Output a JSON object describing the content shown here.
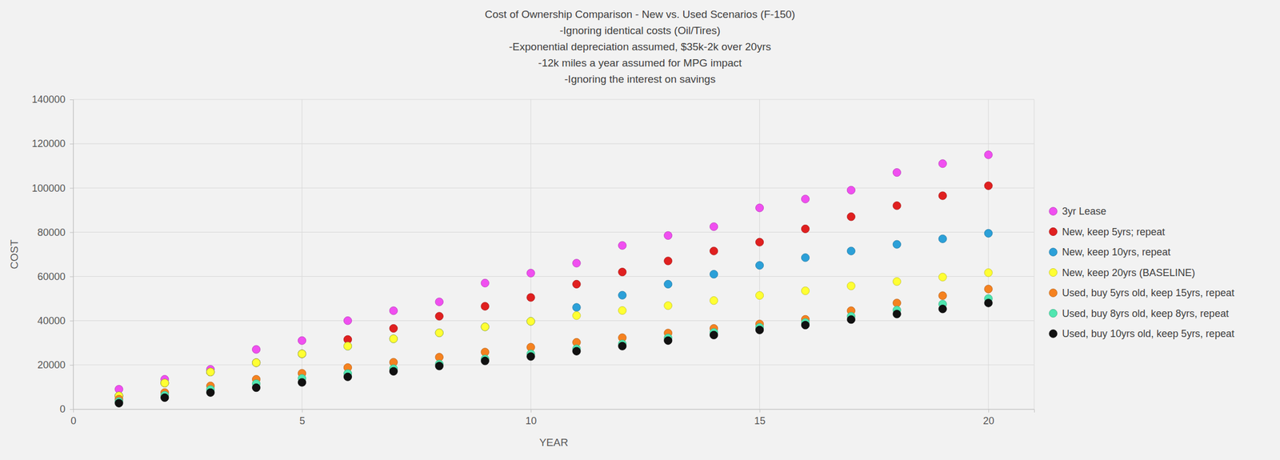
{
  "chart_data": {
    "type": "scatter",
    "title": "Cost of Ownership Comparison - New vs. Used Scenarios (F-150)",
    "subtitle": [
      "-Ignoring identical costs (Oil/Tires)",
      "-Exponential depreciation assumed, $35k-2k over 20yrs",
      "-12k miles a year assumed for MPG impact",
      "-Ignoring the interest on savings"
    ],
    "x_label": "YEAR",
    "y_label": "COST",
    "x": [
      1,
      2,
      3,
      4,
      5,
      6,
      7,
      8,
      9,
      10,
      11,
      12,
      13,
      14,
      15,
      16,
      17,
      18,
      19,
      20
    ],
    "xlim": [
      0,
      21
    ],
    "xticks": [
      0,
      5,
      10,
      15,
      20
    ],
    "ylim": [
      0,
      140000
    ],
    "yticks": [
      0,
      20000,
      40000,
      60000,
      80000,
      100000,
      120000,
      140000
    ],
    "grid": true,
    "legend": "right",
    "marker": "circle",
    "series": [
      {
        "name": "3yr Lease",
        "color": "#f04ff0",
        "values": [
          9000,
          13500,
          18000,
          27000,
          31000,
          40000,
          44500,
          48500,
          57000,
          61500,
          66000,
          74000,
          78500,
          82500,
          91000,
          95000,
          99000,
          107000,
          111000,
          115000
        ]
      },
      {
        "name": "New, keep 5yrs; repeat",
        "color": "#e02020",
        "values": [
          6000,
          11800,
          16800,
          21000,
          25000,
          31500,
          36500,
          42000,
          46500,
          50500,
          56500,
          62000,
          67000,
          71500,
          75500,
          81500,
          87000,
          92000,
          96500,
          101000
        ]
      },
      {
        "name": "New, keep 10yrs, repeat",
        "color": "#2ca0d8",
        "values": [
          6000,
          11800,
          16800,
          21000,
          25000,
          28500,
          31800,
          34500,
          37200,
          39700,
          46000,
          51500,
          56500,
          61000,
          65000,
          68500,
          71500,
          74500,
          77000,
          79500
        ]
      },
      {
        "name": "New, keep 20yrs (BASELINE)",
        "color": "#ffff33",
        "values": [
          6000,
          11800,
          16800,
          21000,
          25000,
          28500,
          31800,
          34500,
          37200,
          39700,
          42300,
          44600,
          46800,
          49100,
          51400,
          53500,
          55700,
          57700,
          59700,
          61700
        ]
      },
      {
        "name": "Used, buy 5yrs old, keep 15yrs, repeat",
        "color": "#f58220",
        "values": [
          4500,
          7500,
          10500,
          13500,
          16200,
          18800,
          21200,
          23500,
          25800,
          28000,
          30200,
          32300,
          34400,
          36500,
          38500,
          40600,
          44500,
          48000,
          51300,
          54300
        ]
      },
      {
        "name": "Used, buy 8yrs old, keep 8yrs, repeat",
        "color": "#50e6b0",
        "values": [
          3500,
          6300,
          8900,
          11500,
          13900,
          16100,
          18300,
          20400,
          22700,
          25000,
          27300,
          29500,
          32200,
          34700,
          37000,
          39200,
          42000,
          44800,
          47500,
          50000
        ]
      },
      {
        "name": "Used, buy 10yrs old, keep 5yrs, repeat",
        "color": "#111111",
        "values": [
          2700,
          5200,
          7500,
          9700,
          12100,
          14600,
          17100,
          19500,
          21800,
          23800,
          26200,
          28500,
          31000,
          33500,
          35800,
          38000,
          40500,
          43000,
          45300,
          48000
        ]
      }
    ]
  }
}
